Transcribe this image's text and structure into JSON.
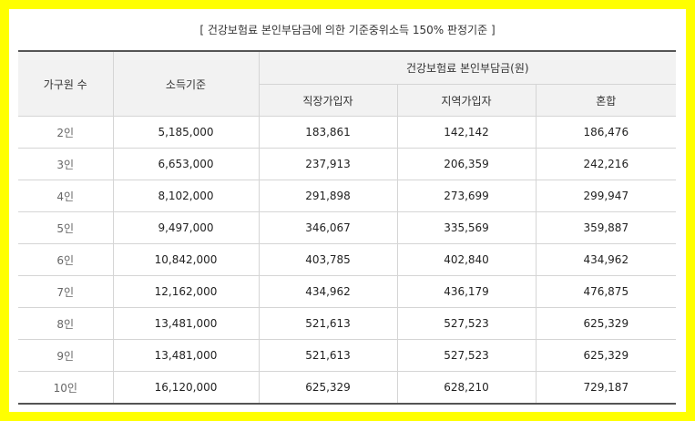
{
  "title": "[ 건강보험료 본인부담금에 의한 기준중위소득 150% 판정기준 ]",
  "headers": {
    "household": "가구원 수",
    "income": "소득기준",
    "premium_group": "건강보험료 본인부담금(원)",
    "employee": "직장가입자",
    "regional": "지역가입자",
    "mixed": "혼합"
  },
  "rows": [
    {
      "size": "2인",
      "income": "5,185,000",
      "employee": "183,861",
      "regional": "142,142",
      "mixed": "186,476"
    },
    {
      "size": "3인",
      "income": "6,653,000",
      "employee": "237,913",
      "regional": "206,359",
      "mixed": "242,216"
    },
    {
      "size": "4인",
      "income": "8,102,000",
      "employee": "291,898",
      "regional": "273,699",
      "mixed": "299,947"
    },
    {
      "size": "5인",
      "income": "9,497,000",
      "employee": "346,067",
      "regional": "335,569",
      "mixed": "359,887"
    },
    {
      "size": "6인",
      "income": "10,842,000",
      "employee": "403,785",
      "regional": "402,840",
      "mixed": "434,962"
    },
    {
      "size": "7인",
      "income": "12,162,000",
      "employee": "434,962",
      "regional": "436,179",
      "mixed": "476,875"
    },
    {
      "size": "8인",
      "income": "13,481,000",
      "employee": "521,613",
      "regional": "527,523",
      "mixed": "625,329"
    },
    {
      "size": "9인",
      "income": "13,481,000",
      "employee": "521,613",
      "regional": "527,523",
      "mixed": "625,329"
    },
    {
      "size": "10인",
      "income": "16,120,000",
      "employee": "625,329",
      "regional": "628,210",
      "mixed": "729,187"
    }
  ]
}
